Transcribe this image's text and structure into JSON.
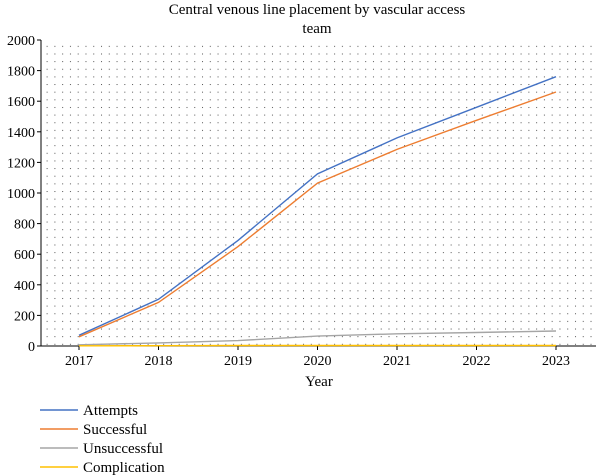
{
  "chart_data": {
    "type": "line",
    "title": "Central venous line placement by vascular access team",
    "title_lines": [
      "Central venous line placement by vascular access",
      "team"
    ],
    "xlabel": "Year",
    "ylabel": "",
    "categories": [
      "2017",
      "2018",
      "2019",
      "2020",
      "2021",
      "2022",
      "2023"
    ],
    "ylim": [
      0,
      2000
    ],
    "yticks": [
      0,
      200,
      400,
      600,
      800,
      1000,
      1200,
      1400,
      1600,
      1800,
      2000
    ],
    "grid": "dotted",
    "legend_position": "bottom-left",
    "series": [
      {
        "name": "Attempts",
        "color": "#4472c4",
        "values": [
          70,
          305,
          690,
          1125,
          1360,
          1560,
          1760
        ]
      },
      {
        "name": "Successful",
        "color": "#ed7d31",
        "values": [
          60,
          285,
          650,
          1065,
          1285,
          1475,
          1660
        ]
      },
      {
        "name": "Unsuccessful",
        "color": "#a5a5a5",
        "values": [
          8,
          20,
          35,
          65,
          80,
          88,
          98
        ]
      },
      {
        "name": "Complication",
        "color": "#ffc000",
        "values": [
          1,
          2,
          3,
          3,
          3,
          3,
          3
        ]
      }
    ]
  }
}
